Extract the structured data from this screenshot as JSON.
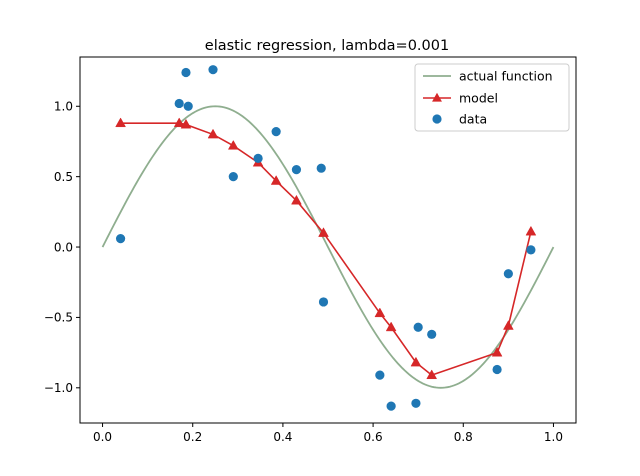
{
  "chart_data": {
    "type": "line",
    "title": "elastic regression, lambda=0.001",
    "xlabel": "",
    "ylabel": "",
    "xlim": [
      -0.05,
      1.05
    ],
    "ylim": [
      -1.25,
      1.35
    ],
    "x_ticks": [
      0.0,
      0.2,
      0.4,
      0.6,
      0.8,
      1.0
    ],
    "x_tick_labels": [
      "0.0",
      "0.2",
      "0.4",
      "0.6",
      "0.8",
      "1.0"
    ],
    "y_ticks": [
      -1.0,
      -0.5,
      0.0,
      0.5,
      1.0
    ],
    "y_tick_labels": [
      "−1.0",
      "−0.5",
      "0.0",
      "0.5",
      "1.0"
    ],
    "grid": false,
    "legend_position": "top-right",
    "series": [
      {
        "name": "actual function",
        "kind": "line",
        "function": "sin(2*pi*x)",
        "x_range": [
          0.0,
          1.0
        ],
        "color": "#8fae8f"
      },
      {
        "name": "model",
        "kind": "line-markers",
        "marker": "triangle",
        "color": "#d62728",
        "x": [
          0.04,
          0.17,
          0.185,
          0.245,
          0.29,
          0.345,
          0.385,
          0.43,
          0.49,
          0.615,
          0.64,
          0.695,
          0.73,
          0.875,
          0.9,
          0.95
        ],
        "y": [
          0.88,
          0.88,
          0.87,
          0.8,
          0.72,
          0.6,
          0.47,
          0.33,
          0.1,
          -0.47,
          -0.57,
          -0.82,
          -0.91,
          -0.75,
          -0.56,
          0.11
        ]
      },
      {
        "name": "data",
        "kind": "scatter",
        "color": "#1f77b4",
        "x": [
          0.04,
          0.17,
          0.185,
          0.19,
          0.245,
          0.29,
          0.345,
          0.385,
          0.43,
          0.485,
          0.49,
          0.615,
          0.64,
          0.695,
          0.7,
          0.73,
          0.875,
          0.9,
          0.95
        ],
        "y": [
          0.06,
          1.02,
          1.24,
          1.0,
          1.26,
          0.5,
          0.63,
          0.82,
          0.55,
          0.56,
          -0.39,
          -0.91,
          -1.13,
          -1.11,
          -0.57,
          -0.62,
          -0.87,
          -0.19,
          -0.02
        ]
      }
    ]
  }
}
